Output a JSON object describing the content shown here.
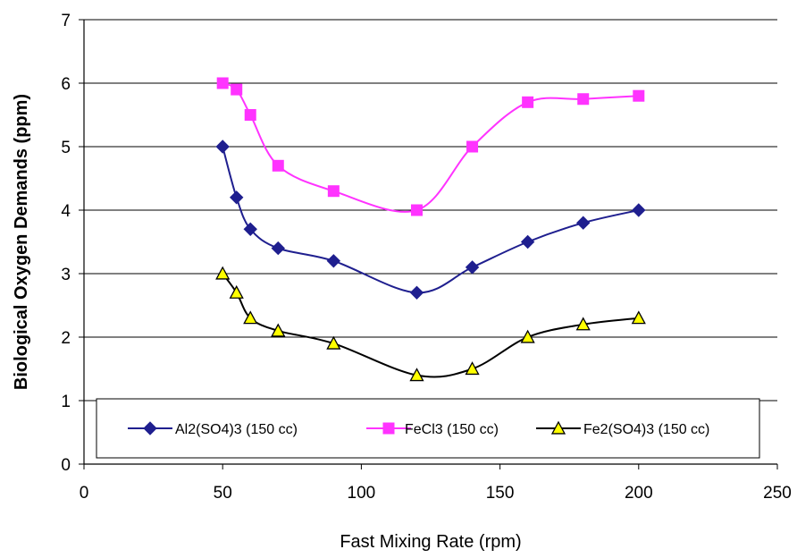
{
  "chart_data": {
    "type": "line",
    "xlabel": "Fast Mixing Rate (rpm)",
    "ylabel": "Biological Oxygen Demands (ppm)",
    "xlim": [
      0,
      250
    ],
    "ylim": [
      0,
      7
    ],
    "xticks": [
      0,
      50,
      100,
      150,
      200,
      250
    ],
    "yticks": [
      0,
      1,
      2,
      3,
      4,
      5,
      6,
      7
    ],
    "grid": "horizontal",
    "legend_position": "bottom-inside",
    "series": [
      {
        "name": "Al2(SO4)3 (150 cc)",
        "color": "#1f1f8f",
        "marker": "diamond",
        "marker_color": "#1f1f8f",
        "x": [
          50,
          55,
          60,
          70,
          90,
          120,
          140,
          160,
          180,
          200
        ],
        "y": [
          5.0,
          4.2,
          3.7,
          3.4,
          3.2,
          2.7,
          3.1,
          3.5,
          3.8,
          4.0
        ]
      },
      {
        "name": "FeCl3 (150 cc)",
        "color": "#ff33ff",
        "marker": "square",
        "marker_color": "#ff33ff",
        "x": [
          50,
          55,
          60,
          70,
          90,
          120,
          140,
          160,
          180,
          200
        ],
        "y": [
          6.0,
          5.9,
          5.5,
          4.7,
          4.3,
          4.0,
          5.0,
          5.7,
          5.75,
          5.8
        ]
      },
      {
        "name": "Fe2(SO4)3 (150 cc)",
        "color": "#000000",
        "marker": "triangle",
        "marker_color": "#ffff00",
        "x": [
          50,
          55,
          60,
          70,
          90,
          120,
          140,
          160,
          180,
          200
        ],
        "y": [
          3.0,
          2.7,
          2.3,
          2.1,
          1.9,
          1.4,
          1.5,
          2.0,
          2.2,
          2.3
        ]
      }
    ]
  }
}
